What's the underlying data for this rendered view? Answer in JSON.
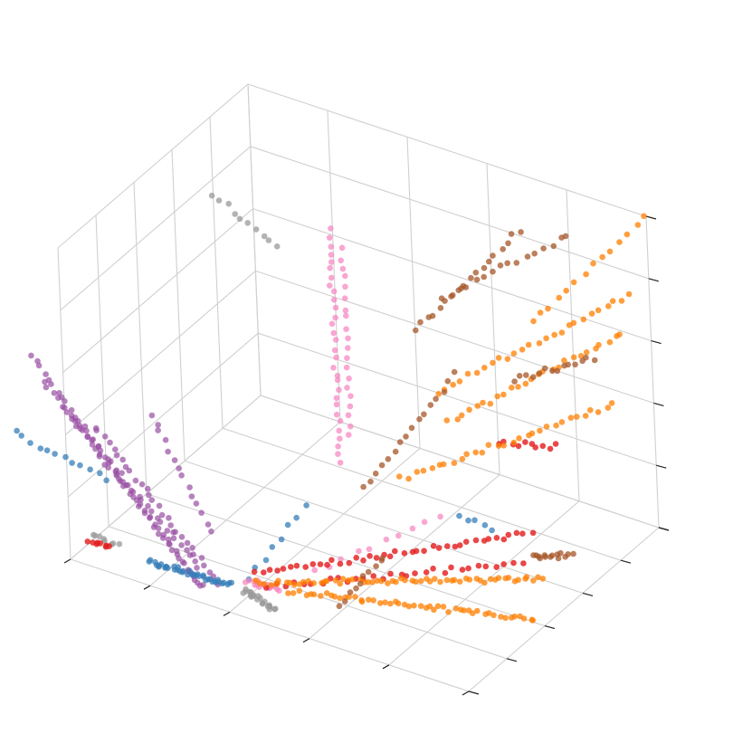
{
  "chart_data": {
    "type": "scatter",
    "projection": "3d",
    "title": "",
    "xlabel": "",
    "ylabel": "",
    "zlabel": "",
    "tick_labels_visible": false,
    "grid": true,
    "legend": "none",
    "xlim": [
      0,
      1
    ],
    "ylim": [
      0,
      1
    ],
    "zlim": [
      0,
      1
    ],
    "view": {
      "elev": 18,
      "azim": -40
    },
    "series_colors": {
      "blue": "#377eb8",
      "orange": "#ff7f00",
      "green": "#4daf4a",
      "pink": "#f781bf",
      "brown": "#a65628",
      "purple": "#984ea3",
      "gray": "#999999",
      "red": "#e41a1c"
    },
    "series": [
      {
        "color_key": "purple",
        "alpha": 0.7,
        "strands": [
          {
            "x": [
              -0.08,
              0.33
            ],
            "y": [
              0.0,
              0.0
            ],
            "z": [
              0.62,
              0.05
            ],
            "n": 40
          },
          {
            "x": [
              -0.05,
              0.33
            ],
            "y": [
              0.0,
              0.0
            ],
            "z": [
              0.55,
              0.05
            ],
            "n": 34
          },
          {
            "x": [
              0.0,
              0.3
            ],
            "y": [
              0.0,
              0.05
            ],
            "z": [
              0.48,
              0.08
            ],
            "n": 30
          },
          {
            "x": [
              0.05,
              0.35
            ],
            "y": [
              0.05,
              0.05
            ],
            "z": [
              0.42,
              0.05
            ],
            "n": 28
          },
          {
            "x": [
              0.18,
              0.32
            ],
            "y": [
              0.08,
              0.08
            ],
            "z": [
              0.5,
              0.18
            ],
            "n": 14
          }
        ]
      },
      {
        "color_key": "blue",
        "alpha": 0.75,
        "strands": [
          {
            "x": [
              -0.13,
              0.1
            ],
            "y": [
              0.0,
              0.0
            ],
            "z": [
              0.35,
              0.3
            ],
            "n": 12
          },
          {
            "x": [
              0.2,
              0.38
            ],
            "y": [
              0.0,
              0.05
            ],
            "z": [
              0.08,
              0.05
            ],
            "n": 40
          },
          {
            "x": [
              0.4,
              0.55
            ],
            "y": [
              0.1,
              0.1
            ],
            "z": [
              0.05,
              0.35
            ],
            "n": 8
          },
          {
            "x": [
              0.72,
              0.8
            ],
            "y": [
              0.55,
              0.55
            ],
            "z": [
              0.15,
              0.15
            ],
            "n": 5
          }
        ]
      },
      {
        "color_key": "pink",
        "alpha": 0.7,
        "strands": [
          {
            "x": [
              0.42,
              0.42
            ],
            "y": [
              0.55,
              0.55
            ],
            "z": [
              0.2,
              0.95
            ],
            "n": 30
          },
          {
            "x": [
              0.45,
              0.45
            ],
            "y": [
              0.55,
              0.55
            ],
            "z": [
              0.3,
              0.9
            ],
            "n": 20
          },
          {
            "x": [
              0.4,
              0.48
            ],
            "y": [
              0.1,
              0.1
            ],
            "z": [
              0.05,
              0.05
            ],
            "n": 16
          },
          {
            "x": [
              0.52,
              0.72
            ],
            "y": [
              0.2,
              0.45
            ],
            "z": [
              0.08,
              0.2
            ],
            "n": 10
          }
        ]
      },
      {
        "color_key": "gray",
        "alpha": 0.75,
        "strands": [
          {
            "x": [
              0.1,
              0.26
            ],
            "y": [
              0.6,
              0.6
            ],
            "z": [
              0.9,
              0.8
            ],
            "n": 10
          },
          {
            "x": [
              0.41,
              0.49
            ],
            "y": [
              0.05,
              0.05
            ],
            "z": [
              0.05,
              0.02
            ],
            "n": 22
          },
          {
            "x": [
              0.06,
              0.12
            ],
            "y": [
              0.0,
              0.0
            ],
            "z": [
              0.1,
              0.1
            ],
            "n": 8
          }
        ]
      },
      {
        "color_key": "red",
        "alpha": 0.8,
        "strands": [
          {
            "x": [
              0.42,
              0.95
            ],
            "y": [
              0.1,
              0.45
            ],
            "z": [
              0.08,
              0.25
            ],
            "n": 40
          },
          {
            "x": [
              0.45,
              0.95
            ],
            "y": [
              0.1,
              0.4
            ],
            "z": [
              0.05,
              0.18
            ],
            "n": 30
          },
          {
            "x": [
              0.05,
              0.1
            ],
            "y": [
              0.0,
              0.0
            ],
            "z": [
              0.08,
              0.08
            ],
            "n": 8
          },
          {
            "x": [
              0.8,
              0.95
            ],
            "y": [
              0.6,
              0.6
            ],
            "z": [
              0.4,
              0.45
            ],
            "n": 10
          }
        ]
      },
      {
        "color_key": "orange",
        "alpha": 0.75,
        "strands": [
          {
            "x": [
              0.42,
              1.0
            ],
            "y": [
              0.1,
              0.4
            ],
            "z": [
              0.05,
              0.15
            ],
            "n": 60
          },
          {
            "x": [
              0.48,
              1.0
            ],
            "y": [
              0.15,
              0.35
            ],
            "z": [
              0.02,
              0.05
            ],
            "n": 50
          },
          {
            "x": [
              0.6,
              1.0
            ],
            "y": [
              0.5,
              0.8
            ],
            "z": [
              0.25,
              0.5
            ],
            "n": 30
          },
          {
            "x": [
              0.65,
              1.0
            ],
            "y": [
              0.6,
              0.9
            ],
            "z": [
              0.5,
              0.8
            ],
            "n": 26
          },
          {
            "x": [
              0.85,
              1.0
            ],
            "y": [
              0.7,
              1.0
            ],
            "z": [
              0.75,
              1.0
            ],
            "n": 14
          },
          {
            "x": [
              0.7,
              1.0
            ],
            "y": [
              0.55,
              0.85
            ],
            "z": [
              0.45,
              0.7
            ],
            "n": 26
          }
        ]
      },
      {
        "color_key": "brown",
        "alpha": 0.75,
        "strands": [
          {
            "x": [
              0.55,
              0.8
            ],
            "y": [
              0.7,
              0.75
            ],
            "z": [
              0.6,
              1.0
            ],
            "n": 18
          },
          {
            "x": [
              0.6,
              0.9
            ],
            "y": [
              0.75,
              0.8
            ],
            "z": [
              0.7,
              1.0
            ],
            "n": 16
          },
          {
            "x": [
              0.55,
              0.75
            ],
            "y": [
              0.4,
              0.5
            ],
            "z": [
              0.25,
              0.65
            ],
            "n": 16
          },
          {
            "x": [
              0.8,
              1.0
            ],
            "y": [
              0.7,
              0.7
            ],
            "z": [
              0.55,
              0.7
            ],
            "n": 14
          },
          {
            "x": [
              0.9,
              1.0
            ],
            "y": [
              0.55,
              0.55
            ],
            "z": [
              0.1,
              0.15
            ],
            "n": 14
          },
          {
            "x": [
              0.62,
              0.7
            ],
            "y": [
              0.12,
              0.2
            ],
            "z": [
              0.05,
              0.2
            ],
            "n": 10
          }
        ]
      }
    ]
  }
}
